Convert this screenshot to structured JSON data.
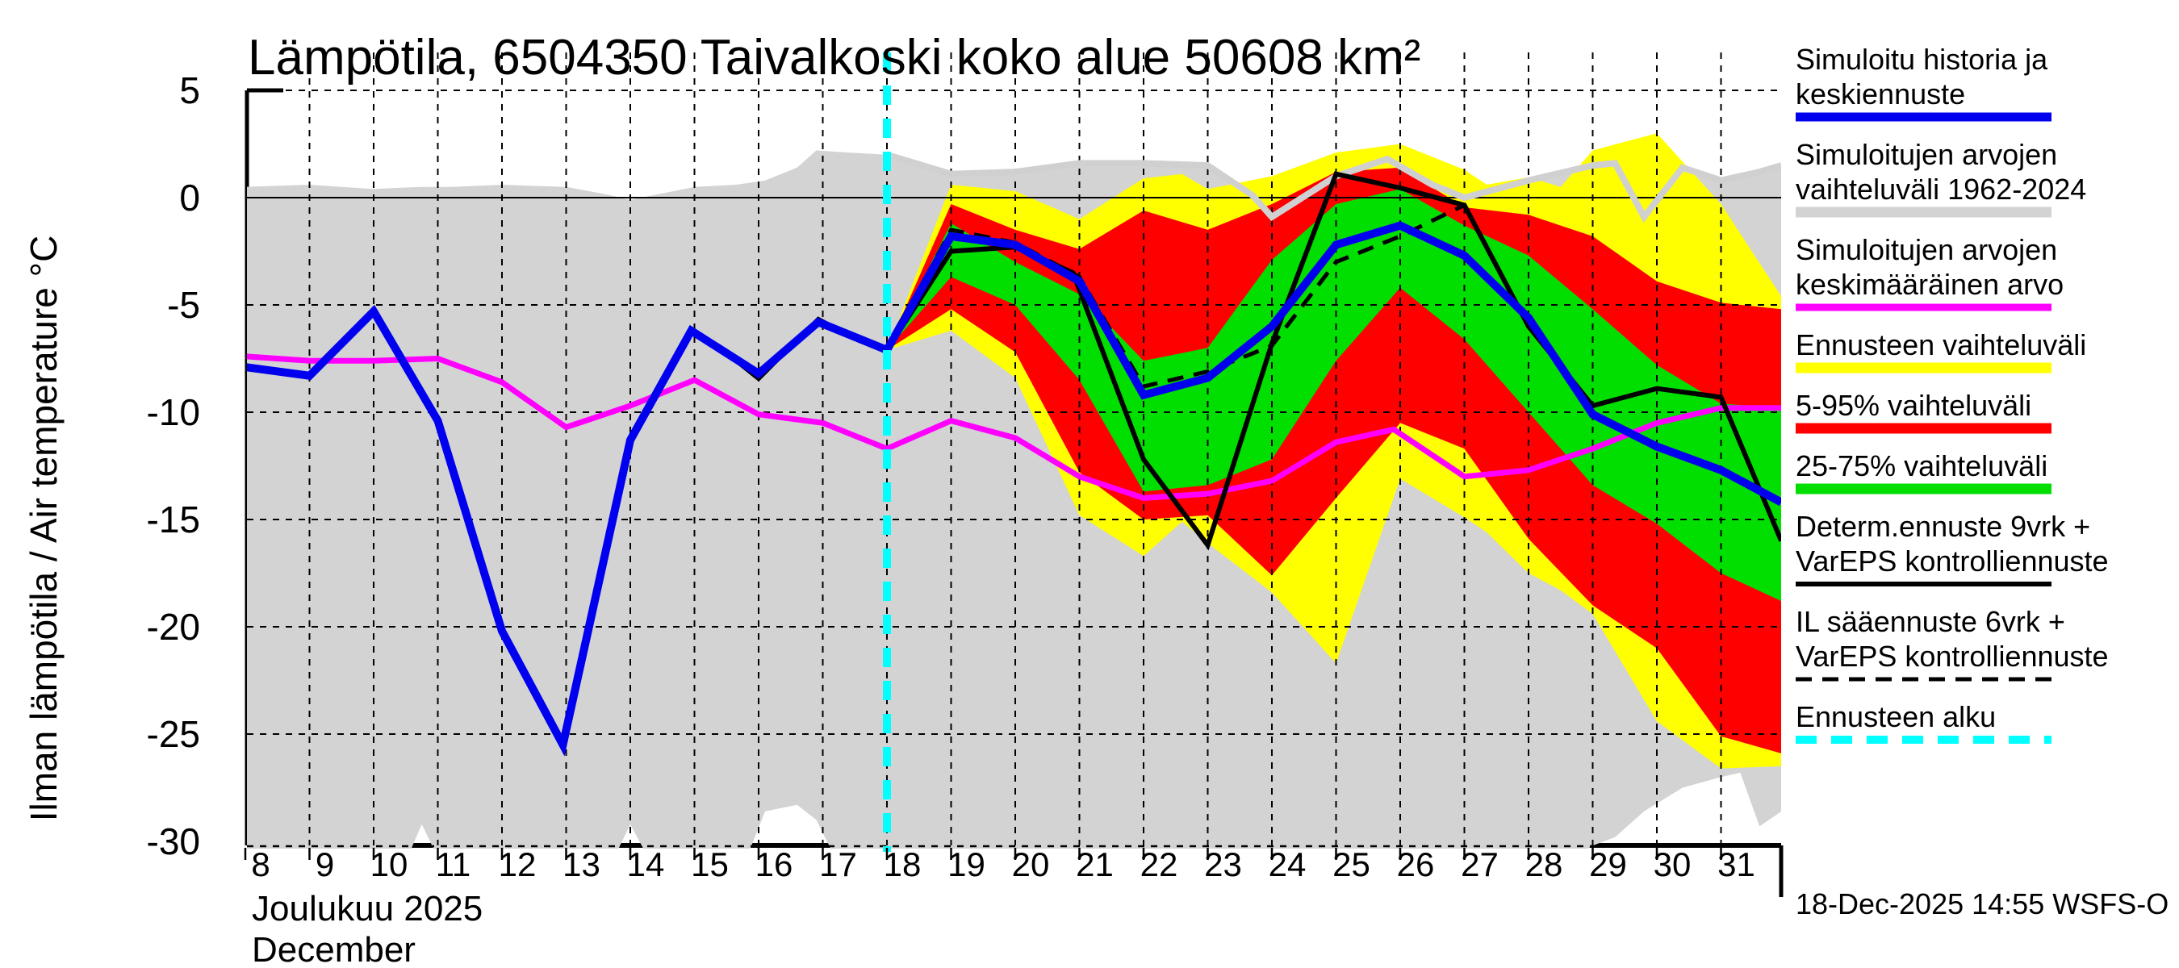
{
  "title": "Lämpötila, 6504350 Taivalkoski koko alue 50608 km²",
  "y_axis": {
    "label": "Ilman lämpötila / Air temperature   °C",
    "ticks": [
      5,
      0,
      -5,
      -10,
      -15,
      -20,
      -25,
      -30
    ]
  },
  "x_axis": {
    "month_fi": "Joulukuu  2025",
    "month_en": "December",
    "days": [
      8,
      9,
      10,
      11,
      12,
      13,
      14,
      15,
      16,
      17,
      18,
      19,
      20,
      21,
      22,
      23,
      24,
      25,
      26,
      27,
      28,
      29,
      30,
      31
    ]
  },
  "timestamp": "18-Dec-2025 14:55 WSFS-O",
  "colors": {
    "blue": "#0000ee",
    "magenta": "#ff00ff",
    "yellow": "#ffff00",
    "red": "#ff0000",
    "green": "#00df00",
    "gray": "#d3d3d3",
    "gray_edge": "#d0d0d0",
    "cyan": "#00ffff",
    "black": "#000000"
  },
  "legend": [
    {
      "lines": [
        "Simuloitu historia ja",
        "keskiennuste"
      ],
      "swatch": "blue",
      "thickness": 11,
      "dash": ""
    },
    {
      "lines": [
        "Simuloitujen arvojen",
        "vaihteluväli 1962-2024"
      ],
      "swatch": "gray",
      "thickness": 13,
      "dash": ""
    },
    {
      "lines": [
        "Simuloitujen arvojen",
        "keskimääräinen arvo"
      ],
      "swatch": "magenta",
      "thickness": 9,
      "dash": ""
    },
    {
      "lines": [
        "Ennusteen vaihteluväli"
      ],
      "swatch": "yellow",
      "thickness": 13,
      "dash": ""
    },
    {
      "lines": [
        "5-95% vaihteluväli"
      ],
      "swatch": "red",
      "thickness": 13,
      "dash": ""
    },
    {
      "lines": [
        "25-75% vaihteluväli"
      ],
      "swatch": "green",
      "thickness": 13,
      "dash": ""
    },
    {
      "lines": [
        "Determ.ennuste 9vrk +",
        "VarEPS kontrolliennuste"
      ],
      "swatch": "black",
      "thickness": 6,
      "dash": ""
    },
    {
      "lines": [
        "IL sääennuste 6vrk  +",
        "VarEPS kontrolliennuste"
      ],
      "swatch": "black",
      "thickness": 5,
      "dash": "20 13"
    },
    {
      "lines": [
        "Ennusteen alku"
      ],
      "swatch": "cyan",
      "thickness": 10,
      "dash": "26 18"
    }
  ],
  "chart_data": {
    "type": "line",
    "title": "Lämpötila, 6504350 Taivalkoski koko alue 50608 km²",
    "xlabel_fi": "Joulukuu 2025",
    "xlabel_en": "December",
    "ylabel": "Ilman lämpötila / Air temperature (°C)",
    "x_unit": "day of December 2025",
    "xlim": [
      8,
      31.94
    ],
    "ylim": [
      -32.2,
      6.8
    ],
    "x_ticks": [
      8,
      9,
      10,
      11,
      12,
      13,
      14,
      15,
      16,
      17,
      18,
      19,
      20,
      21,
      22,
      23,
      24,
      25,
      26,
      27,
      28,
      29,
      30,
      31
    ],
    "y_ticks": [
      5,
      0,
      -5,
      -10,
      -15,
      -20,
      -25,
      -30
    ],
    "grid": true,
    "legend_position": "right",
    "forecast_start_day": 18,
    "bands": {
      "sim_range_1962_2024_gray": [
        [
          8,
          0.5,
          -32
        ],
        [
          9,
          0.6,
          -32
        ],
        [
          10,
          0.4,
          -32
        ],
        [
          10.35,
          0.45,
          -32
        ],
        [
          10.75,
          0.5,
          -29.2
        ],
        [
          11.2,
          0.5,
          -32
        ],
        [
          12,
          0.6,
          -32
        ],
        [
          13,
          0.5,
          -32
        ],
        [
          13.55,
          0.2,
          -32
        ],
        [
          14,
          -0.1,
          -29.2
        ],
        [
          14.5,
          0.2,
          -32
        ],
        [
          15,
          0.5,
          -32
        ],
        [
          15.65,
          0.6,
          -32
        ],
        [
          16.1,
          0.8,
          -28.6
        ],
        [
          16.6,
          1.4,
          -28.3
        ],
        [
          16.9,
          2.2,
          -29
        ],
        [
          17.4,
          2.1,
          -32
        ],
        [
          18,
          2.0,
          -32
        ],
        [
          19,
          1.1,
          -32
        ],
        [
          20,
          1.2,
          -32
        ],
        [
          21,
          1.6,
          -32
        ],
        [
          22,
          1.6,
          -32
        ],
        [
          23,
          1.5,
          -32
        ],
        [
          23.7,
          0.1,
          -32
        ],
        [
          24,
          -0.9,
          -32
        ],
        [
          25,
          1.0,
          -32
        ],
        [
          25.8,
          1.8,
          -32
        ],
        [
          26.5,
          0.6,
          -32
        ],
        [
          27,
          0.0,
          -32
        ],
        [
          28,
          0.8,
          -32
        ],
        [
          29,
          1.5,
          -30.2
        ],
        [
          29.35,
          1.6,
          -29.8
        ],
        [
          29.8,
          -0.9,
          -28.6
        ],
        [
          30.4,
          1.4,
          -27.5
        ],
        [
          31,
          0.8,
          -27.0
        ],
        [
          31.3,
          1.0,
          -26.8
        ],
        [
          31.6,
          1.2,
          -29.3
        ],
        [
          31.94,
          1.5,
          -28.6
        ]
      ],
      "forecast_range_yellow": [
        [
          18,
          -7.1,
          -7.1
        ],
        [
          19,
          0.6,
          -6.2
        ],
        [
          20,
          0.3,
          -8.4
        ],
        [
          21,
          -1.0,
          -14.8
        ],
        [
          22,
          0.9,
          -16.7
        ],
        [
          22.6,
          1.1,
          -15.1
        ],
        [
          23,
          0.4,
          -16.1
        ],
        [
          24,
          1.0,
          -18.4
        ],
        [
          25,
          2.1,
          -21.7
        ],
        [
          26,
          2.5,
          -13.1
        ],
        [
          27,
          1.3,
          -14.9
        ],
        [
          27.35,
          0.6,
          -15.6
        ],
        [
          28,
          0.95,
          -17.5
        ],
        [
          28.5,
          0.5,
          -18.3
        ],
        [
          29,
          2.2,
          -19.4
        ],
        [
          30,
          3.0,
          -24.4
        ],
        [
          31,
          -0.3,
          -26.6
        ],
        [
          31.94,
          -4.6,
          -26.5
        ]
      ],
      "p5_95_red": [
        [
          18,
          -7.1,
          -7.1
        ],
        [
          19,
          -0.3,
          -5.2
        ],
        [
          20,
          -1.5,
          -7.2
        ],
        [
          21,
          -2.4,
          -12.8
        ],
        [
          22,
          -0.6,
          -15.0
        ],
        [
          23,
          -1.5,
          -14.8
        ],
        [
          24,
          -0.3,
          -17.6
        ],
        [
          25,
          1.2,
          -14.0
        ],
        [
          26,
          1.4,
          -10.5
        ],
        [
          27,
          -0.45,
          -11.7
        ],
        [
          28,
          -0.8,
          -15.9
        ],
        [
          29,
          -1.8,
          -19.0
        ],
        [
          30,
          -3.9,
          -21.0
        ],
        [
          31,
          -4.9,
          -25.1
        ],
        [
          31.94,
          -5.2,
          -25.9
        ]
      ],
      "p25_75_green": [
        [
          18,
          -7.1,
          -7.1
        ],
        [
          19,
          -1.2,
          -3.7
        ],
        [
          20,
          -3.0,
          -5.0
        ],
        [
          21,
          -4.5,
          -8.5
        ],
        [
          22,
          -7.6,
          -13.7
        ],
        [
          23,
          -7.0,
          -13.4
        ],
        [
          24,
          -2.9,
          -12.2
        ],
        [
          25,
          -0.3,
          -7.6
        ],
        [
          26,
          0.4,
          -4.2
        ],
        [
          27,
          -1.3,
          -6.6
        ],
        [
          28,
          -2.7,
          -10.0
        ],
        [
          29,
          -5.2,
          -13.4
        ],
        [
          30,
          -7.8,
          -15.2
        ],
        [
          31,
          -9.6,
          -17.5
        ],
        [
          31.94,
          -9.8,
          -18.8
        ]
      ]
    },
    "lines": {
      "sim_history_and_median_blue": [
        [
          8,
          -7.9
        ],
        [
          9,
          -8.3
        ],
        [
          10,
          -5.3
        ],
        [
          11,
          -10.4
        ],
        [
          12,
          -20.2
        ],
        [
          12.95,
          -25.5
        ],
        [
          14,
          -11.3
        ],
        [
          14.95,
          -6.2
        ],
        [
          16,
          -8.2
        ],
        [
          16.93,
          -5.8
        ],
        [
          18,
          -7.1
        ],
        [
          19,
          -1.8
        ],
        [
          20,
          -2.2
        ],
        [
          21,
          -3.9
        ],
        [
          22,
          -9.2
        ],
        [
          23,
          -8.4
        ],
        [
          24,
          -6.0
        ],
        [
          25,
          -2.2
        ],
        [
          26,
          -1.3
        ],
        [
          27,
          -2.7
        ],
        [
          28,
          -5.6
        ],
        [
          29,
          -10.1
        ],
        [
          30,
          -11.6
        ],
        [
          31,
          -12.7
        ],
        [
          31.94,
          -14.2
        ]
      ],
      "sim_mean_magenta": [
        [
          8,
          -7.4
        ],
        [
          9,
          -7.6
        ],
        [
          10,
          -7.6
        ],
        [
          11,
          -7.5
        ],
        [
          12,
          -8.6
        ],
        [
          13,
          -10.7
        ],
        [
          14,
          -9.7
        ],
        [
          15,
          -8.5
        ],
        [
          16,
          -10.1
        ],
        [
          17,
          -10.5
        ],
        [
          18,
          -11.7
        ],
        [
          19,
          -10.4
        ],
        [
          20,
          -11.2
        ],
        [
          21,
          -13.0
        ],
        [
          22,
          -14.0
        ],
        [
          23,
          -13.8
        ],
        [
          24,
          -13.2
        ],
        [
          25,
          -11.4
        ],
        [
          25.9,
          -10.8
        ],
        [
          27,
          -13.0
        ],
        [
          28,
          -12.7
        ],
        [
          29,
          -11.7
        ],
        [
          30,
          -10.5
        ],
        [
          31,
          -9.8
        ],
        [
          31.94,
          -9.8
        ]
      ],
      "determ_9d_vareps_black": [
        [
          18,
          -7.1
        ],
        [
          19,
          -2.5
        ],
        [
          20,
          -2.3
        ],
        [
          20.9,
          -3.5
        ],
        [
          22,
          -12.2
        ],
        [
          23,
          -16.2
        ],
        [
          24,
          -6.8
        ],
        [
          25,
          1.1
        ],
        [
          26,
          0.45
        ],
        [
          27,
          -0.35
        ],
        [
          28,
          -6.0
        ],
        [
          29,
          -9.7
        ],
        [
          30,
          -8.9
        ],
        [
          31,
          -9.3
        ],
        [
          31.94,
          -16.0
        ]
      ],
      "il_6d_vareps_black_dashed": [
        [
          18,
          -7.1
        ],
        [
          19,
          -1.5
        ],
        [
          20,
          -2.1
        ],
        [
          21,
          -3.7
        ],
        [
          22,
          -8.8
        ],
        [
          23,
          -8.1
        ],
        [
          24,
          -6.9
        ],
        [
          25,
          -3.0
        ],
        [
          26,
          -1.8
        ],
        [
          27,
          -0.35
        ]
      ],
      "pre_forecast_black": [
        [
          15.35,
          -6.9
        ],
        [
          16,
          -8.45
        ],
        [
          16.93,
          -5.65
        ],
        [
          17.5,
          -6.55
        ],
        [
          18,
          -7.1
        ]
      ],
      "gray_range_top_edge": [
        [
          18,
          2.0
        ],
        [
          19,
          1.1
        ],
        [
          20,
          1.2
        ],
        [
          21,
          1.6
        ],
        [
          22,
          1.6
        ],
        [
          23,
          1.5
        ],
        [
          23.7,
          0.1
        ],
        [
          24,
          -0.9
        ],
        [
          25,
          1.0
        ],
        [
          25.8,
          1.8
        ],
        [
          26.5,
          0.6
        ],
        [
          27,
          0.0
        ],
        [
          28,
          0.8
        ],
        [
          29,
          1.5
        ],
        [
          29.35,
          1.6
        ],
        [
          29.8,
          -0.9
        ],
        [
          30.4,
          1.4
        ],
        [
          31,
          0.8
        ],
        [
          31.3,
          1.0
        ],
        [
          31.6,
          1.2
        ],
        [
          31.94,
          1.5
        ]
      ],
      "forecast_start_cyan_vline": 18
    }
  }
}
